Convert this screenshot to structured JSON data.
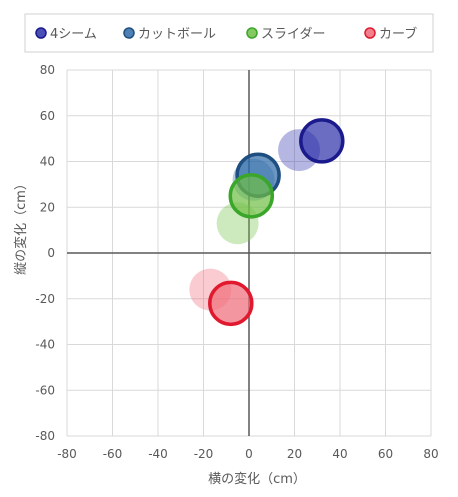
{
  "chart_data": {
    "type": "scatter",
    "title": "",
    "xlabel": "横の変化（cm）",
    "ylabel": "縦の変化（cm）",
    "xlim": [
      -80,
      80
    ],
    "ylim": [
      -80,
      80
    ],
    "x_ticks": [
      -80,
      -60,
      -40,
      -20,
      0,
      20,
      40,
      60,
      80
    ],
    "y_ticks": [
      -80,
      -60,
      -40,
      -20,
      0,
      20,
      40,
      60,
      80
    ],
    "grid": true,
    "legend_position": "top",
    "series": [
      {
        "name": "4シーム",
        "color": "#2b2fa8",
        "edge": "#1a1a8c",
        "points": [
          {
            "x": 22,
            "y": 45,
            "emphasis": "faded"
          },
          {
            "x": 32,
            "y": 49,
            "emphasis": "highlighted"
          }
        ]
      },
      {
        "name": "カットボール",
        "color": "#2e6aa8",
        "edge": "#1f4e80",
        "points": [
          {
            "x": 2,
            "y": 32,
            "emphasis": "faded"
          },
          {
            "x": 4,
            "y": 34,
            "emphasis": "highlighted"
          }
        ]
      },
      {
        "name": "スライダー",
        "color": "#6fbf45",
        "edge": "#3aa62a",
        "points": [
          {
            "x": -5,
            "y": 13,
            "emphasis": "faded"
          },
          {
            "x": 1,
            "y": 25,
            "emphasis": "highlighted"
          }
        ]
      },
      {
        "name": "カーブ",
        "color": "#f06a78",
        "edge": "#e0192f",
        "points": [
          {
            "x": -17,
            "y": -16,
            "emphasis": "faded"
          },
          {
            "x": -8,
            "y": -22,
            "emphasis": "highlighted"
          }
        ]
      }
    ]
  }
}
